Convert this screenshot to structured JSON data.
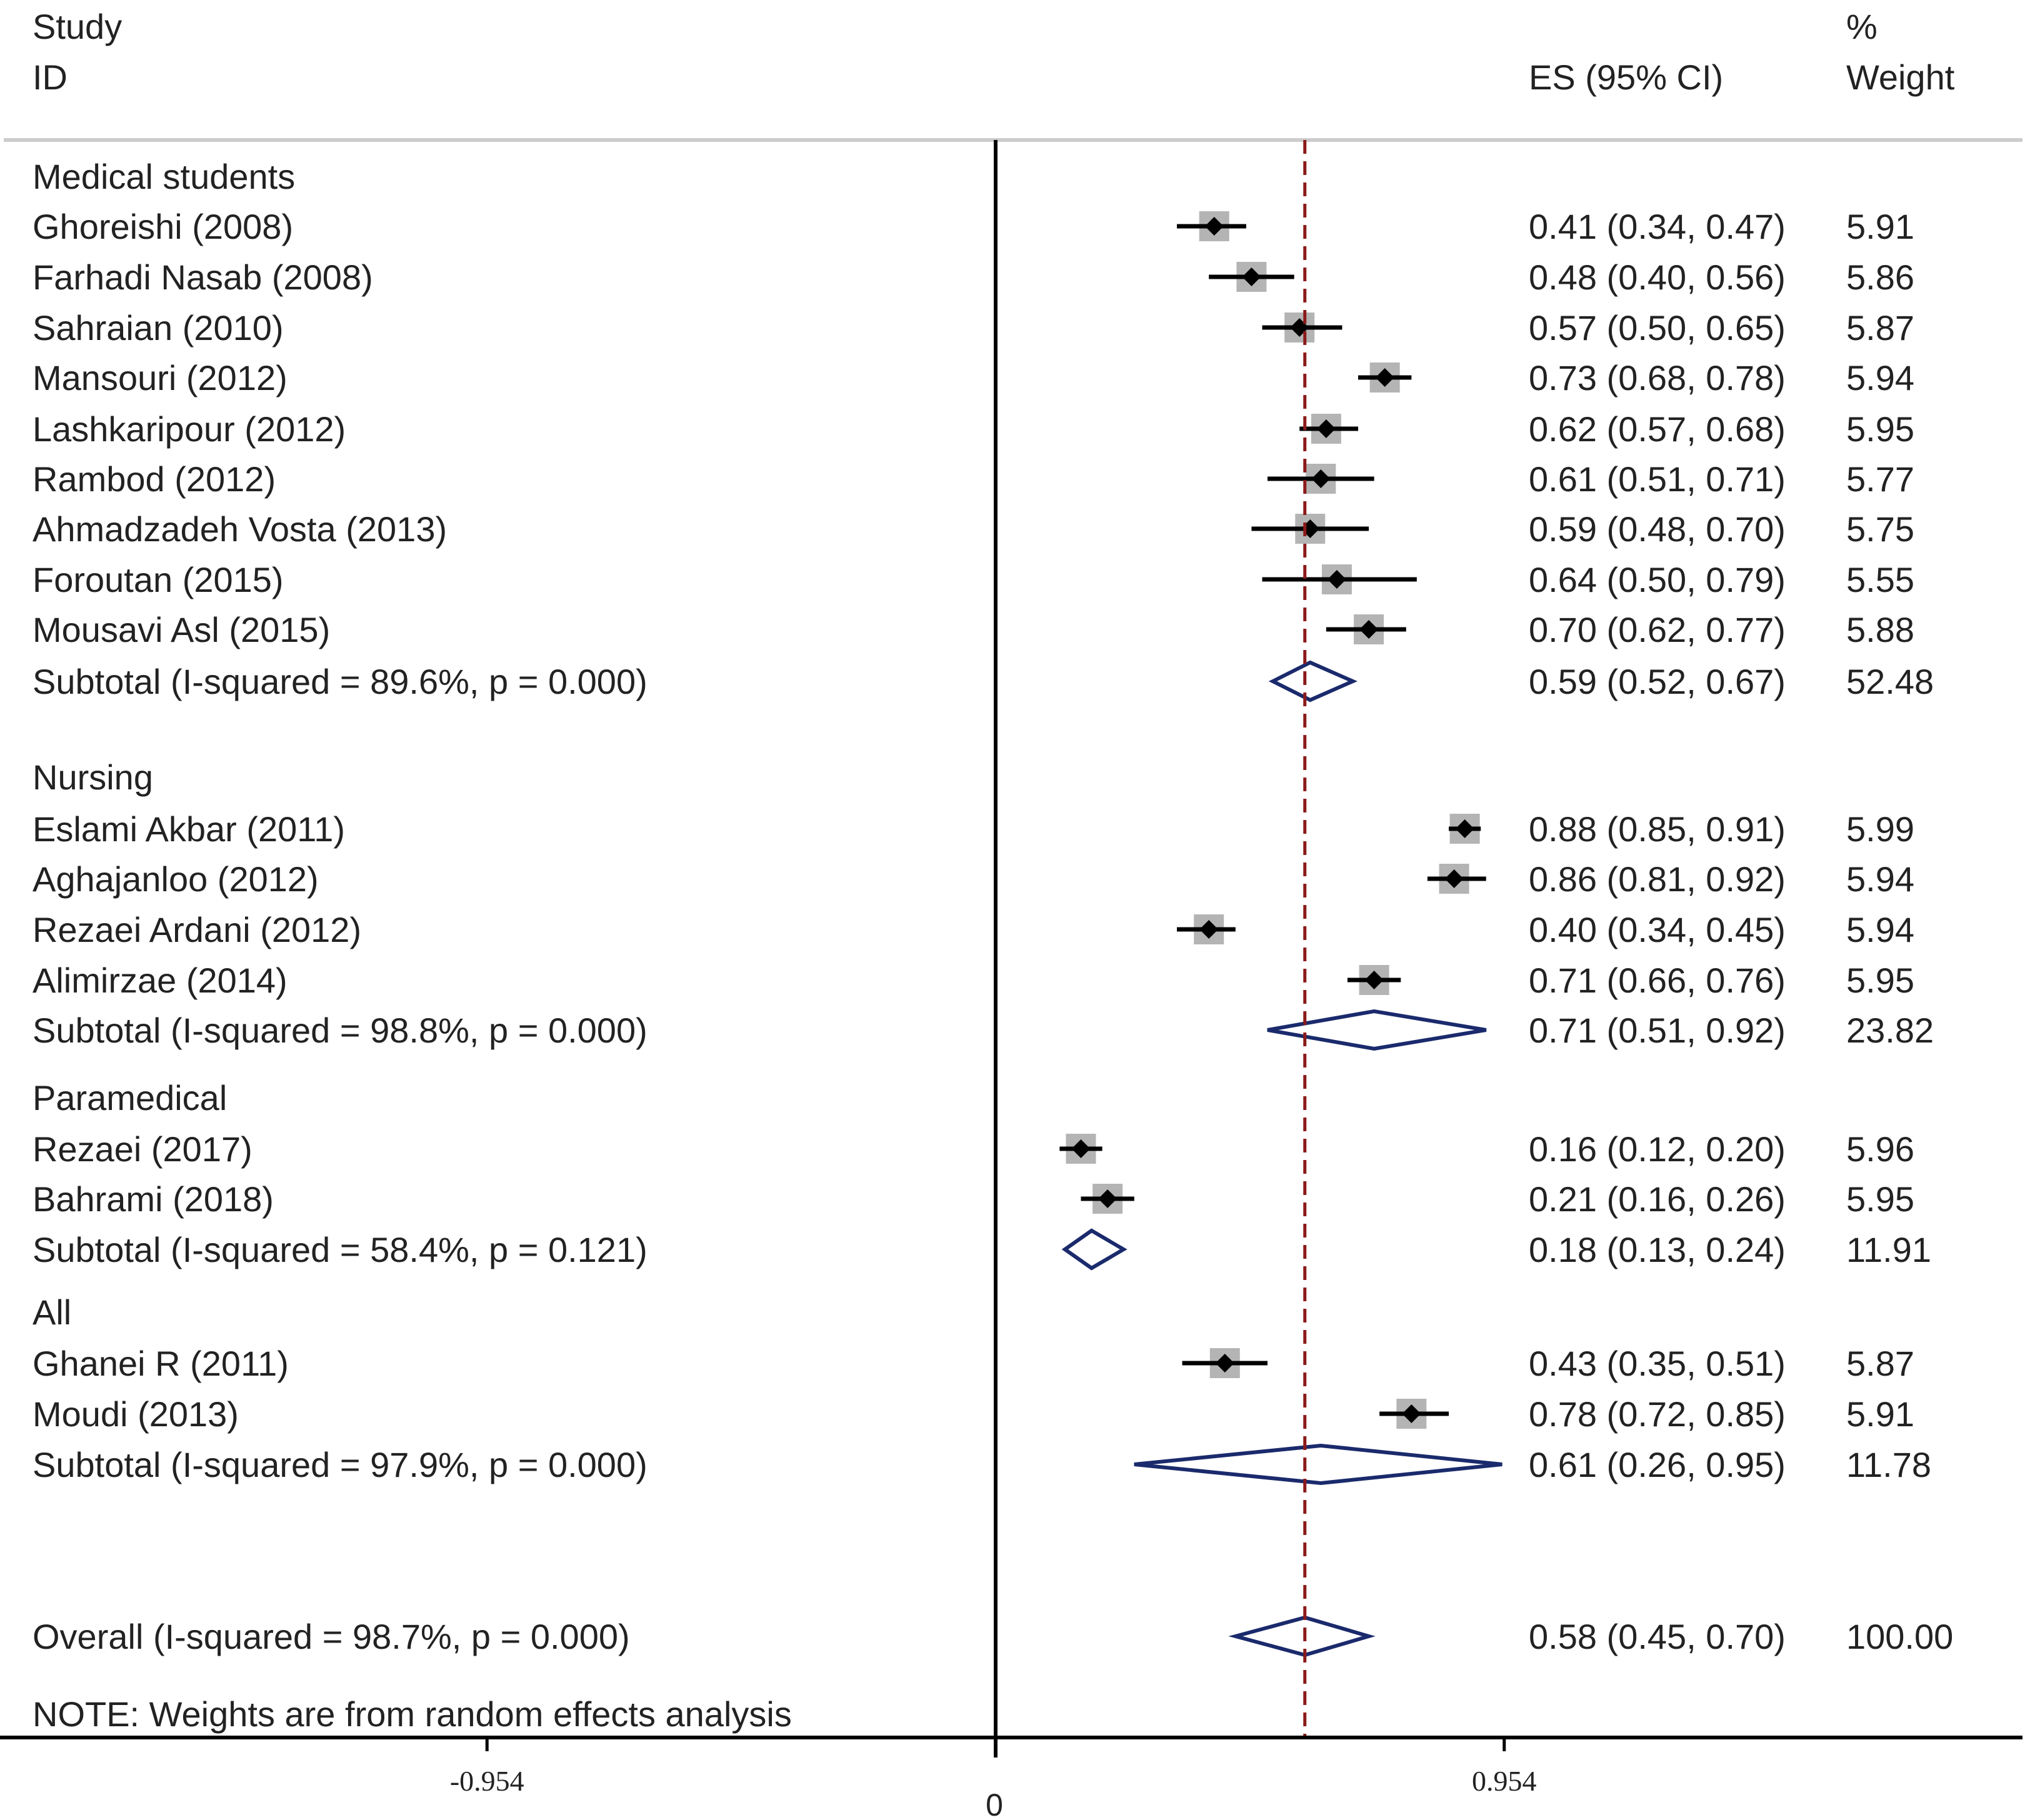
{
  "chart_data": {
    "type": "forest",
    "headers": {
      "study_line1": "Study",
      "study_line2": "ID",
      "es": "ES (95% CI)",
      "weight_line1": "%",
      "weight_line2": "Weight"
    },
    "groups": [
      {
        "name": "Medical students",
        "studies": [
          {
            "label": "Ghoreishi  (2008)",
            "es": 0.41,
            "lo": 0.34,
            "hi": 0.47,
            "es_text": "0.41 (0.34, 0.47)",
            "weight": "5.91"
          },
          {
            "label": "Farhadi Nasab (2008)",
            "es": 0.48,
            "lo": 0.4,
            "hi": 0.56,
            "es_text": "0.48 (0.40, 0.56)",
            "weight": "5.86"
          },
          {
            "label": "Sahraian (2010)",
            "es": 0.57,
            "lo": 0.5,
            "hi": 0.65,
            "es_text": "0.57 (0.50, 0.65)",
            "weight": "5.87"
          },
          {
            "label": "Mansouri (2012)",
            "es": 0.73,
            "lo": 0.68,
            "hi": 0.78,
            "es_text": "0.73 (0.68, 0.78)",
            "weight": "5.94"
          },
          {
            "label": "Lashkaripour (2012)",
            "es": 0.62,
            "lo": 0.57,
            "hi": 0.68,
            "es_text": "0.62 (0.57, 0.68)",
            "weight": "5.95"
          },
          {
            "label": "Rambod (2012)",
            "es": 0.61,
            "lo": 0.51,
            "hi": 0.71,
            "es_text": "0.61 (0.51, 0.71)",
            "weight": "5.77"
          },
          {
            "label": "Ahmadzadeh Vosta (2013)",
            "es": 0.59,
            "lo": 0.48,
            "hi": 0.7,
            "es_text": "0.59 (0.48, 0.70)",
            "weight": "5.75"
          },
          {
            "label": "Foroutan (2015)",
            "es": 0.64,
            "lo": 0.5,
            "hi": 0.79,
            "es_text": "0.64 (0.50, 0.79)",
            "weight": "5.55"
          },
          {
            "label": "Mousavi Asl (2015)",
            "es": 0.7,
            "lo": 0.62,
            "hi": 0.77,
            "es_text": "0.70 (0.62, 0.77)",
            "weight": "5.88"
          }
        ],
        "subtotal": {
          "label": "Subtotal  (I-squared = 89.6%, p = 0.000)",
          "es": 0.59,
          "lo": 0.52,
          "hi": 0.67,
          "es_text": "0.59 (0.52, 0.67)",
          "weight": "52.48"
        }
      },
      {
        "name": "Nursing",
        "studies": [
          {
            "label": "Eslami Akbar (2011)",
            "es": 0.88,
            "lo": 0.85,
            "hi": 0.91,
            "es_text": "0.88 (0.85, 0.91)",
            "weight": "5.99"
          },
          {
            "label": "Aghajanloo  (2012)",
            "es": 0.86,
            "lo": 0.81,
            "hi": 0.92,
            "es_text": "0.86 (0.81, 0.92)",
            "weight": "5.94"
          },
          {
            "label": "Rezaei Ardani (2012)",
            "es": 0.4,
            "lo": 0.34,
            "hi": 0.45,
            "es_text": "0.40 (0.34, 0.45)",
            "weight": "5.94"
          },
          {
            "label": "Alimirzae (2014)",
            "es": 0.71,
            "lo": 0.66,
            "hi": 0.76,
            "es_text": "0.71 (0.66, 0.76)",
            "weight": "5.95"
          }
        ],
        "subtotal": {
          "label": "Subtotal  (I-squared = 98.8%, p = 0.000)",
          "es": 0.71,
          "lo": 0.51,
          "hi": 0.92,
          "es_text": "0.71 (0.51, 0.92)",
          "weight": "23.82"
        }
      },
      {
        "name": "Paramedical",
        "studies": [
          {
            "label": "Rezaei  (2017)",
            "es": 0.16,
            "lo": 0.12,
            "hi": 0.2,
            "es_text": "0.16 (0.12, 0.20)",
            "weight": "5.96"
          },
          {
            "label": "Bahrami (2018)",
            "es": 0.21,
            "lo": 0.16,
            "hi": 0.26,
            "es_text": "0.21 (0.16, 0.26)",
            "weight": "5.95"
          }
        ],
        "subtotal": {
          "label": "Subtotal  (I-squared = 58.4%, p = 0.121)",
          "es": 0.18,
          "lo": 0.13,
          "hi": 0.24,
          "es_text": "0.18 (0.13, 0.24)",
          "weight": "11.91"
        }
      },
      {
        "name": "All",
        "studies": [
          {
            "label": "Ghanei R (2011)",
            "es": 0.43,
            "lo": 0.35,
            "hi": 0.51,
            "es_text": "0.43 (0.35, 0.51)",
            "weight": "5.87"
          },
          {
            "label": "Moudi  (2013)",
            "es": 0.78,
            "lo": 0.72,
            "hi": 0.85,
            "es_text": "0.78 (0.72, 0.85)",
            "weight": "5.91"
          }
        ],
        "subtotal": {
          "label": "Subtotal  (I-squared = 97.9%, p = 0.000)",
          "es": 0.61,
          "lo": 0.26,
          "hi": 0.95,
          "es_text": "0.61 (0.26, 0.95)",
          "weight": "11.78"
        }
      }
    ],
    "overall": {
      "label": "Overall  (I-squared = 98.7%, p = 0.000)",
      "es": 0.58,
      "lo": 0.45,
      "hi": 0.7,
      "es_text": "0.58 (0.45, 0.70)",
      "weight": "100.00"
    },
    "note": "NOTE: Weights are from random effects analysis",
    "x_ticks": [
      {
        "value": -0.954,
        "label": "-0.954"
      },
      {
        "value": 0.954,
        "label": "0.954"
      }
    ],
    "zero_label": "0",
    "null_line": 0,
    "xlim": [
      -1.88,
      1.93
    ],
    "colors": {
      "marker": "#000000",
      "weight_box": "#b4b4b4",
      "diamond": "#1a2a6c",
      "overall_line": "#8b1a1a",
      "axis": "#000000",
      "divider": "#cccccc"
    }
  }
}
